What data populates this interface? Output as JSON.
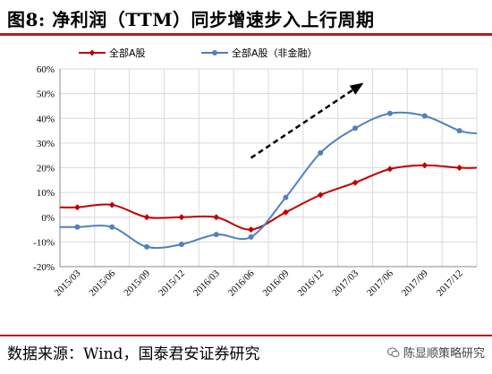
{
  "figure": {
    "title": "图8: 净利润（TTM）同步增速步入上行周期",
    "source": "数据来源：Wind，国泰君安证券研究",
    "watermark": "陈显顺策略研究"
  },
  "colors": {
    "rule": "#b71c1c",
    "series_all": "#c00000",
    "series_nonfin": "#4f81bd",
    "grid": "#d9d9d9",
    "arrow": "#000000"
  },
  "chart_data": {
    "type": "line",
    "categories": [
      "2015/03",
      "2015/06",
      "2015/09",
      "2015/12",
      "2016/03",
      "2016/06",
      "2016/09",
      "2016/12",
      "2017/03",
      "2017/06",
      "2017/09",
      "2017/12"
    ],
    "series": [
      {
        "name": "全部A股",
        "marker": "diamond",
        "values": [
          4,
          5,
          0,
          0,
          0,
          -5,
          2,
          9,
          14,
          19.5,
          21,
          20
        ]
      },
      {
        "name": "全部A股（非金融）",
        "marker": "circle",
        "values": [
          -4,
          -4,
          -12,
          -11,
          -7,
          -8,
          8,
          26,
          36,
          42,
          41,
          35
        ]
      }
    ],
    "ylim": [
      -20,
      60
    ],
    "yticks": [
      -20,
      -10,
      0,
      10,
      20,
      30,
      40,
      50,
      60
    ],
    "ytick_format": "percent",
    "grid": true,
    "legend": "top-left",
    "annotation": "dashed-arrow-upward"
  }
}
